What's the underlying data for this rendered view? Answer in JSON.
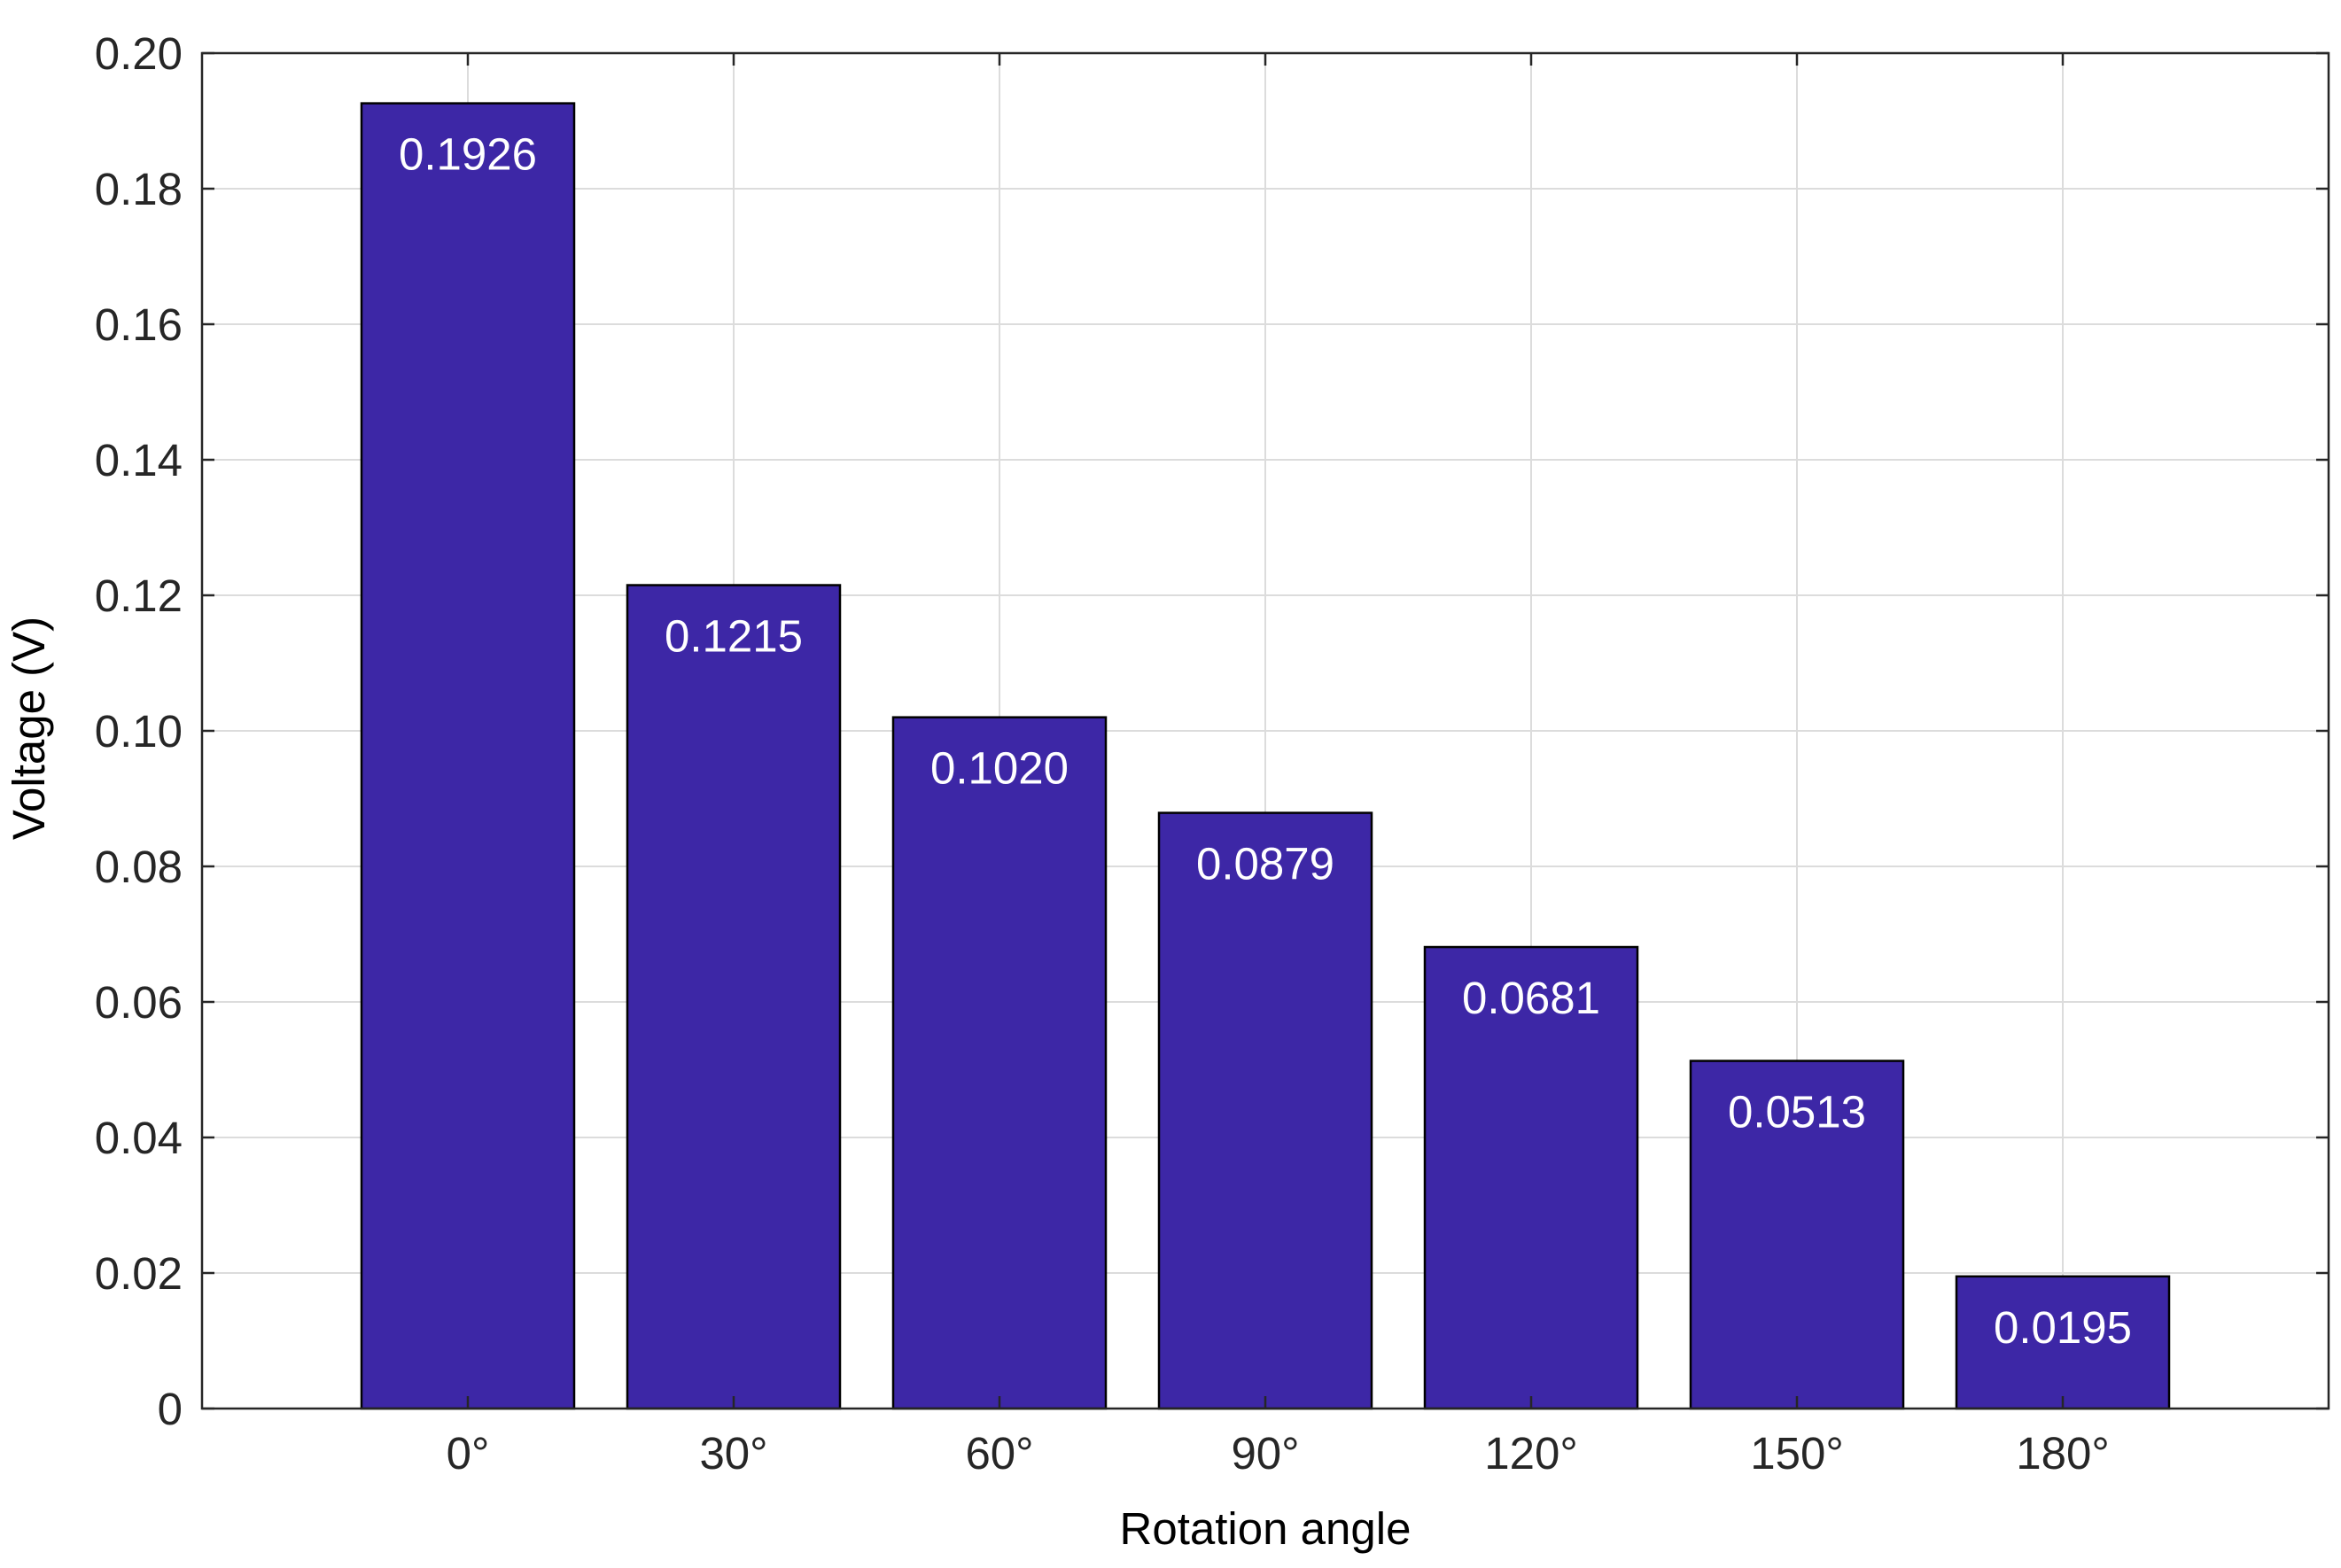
{
  "chart_data": {
    "type": "bar",
    "title": "",
    "xlabel": "Rotation angle",
    "ylabel": "Voltage (V)",
    "categories": [
      "0°",
      "30°",
      "60°",
      "90°",
      "120°",
      "150°",
      "180°"
    ],
    "values": [
      0.1926,
      0.1215,
      0.102,
      0.0879,
      0.0681,
      0.0513,
      0.0195
    ],
    "data_labels": [
      "0.1926",
      "0.1215",
      "0.1020",
      "0.0879",
      "0.0681",
      "0.0513",
      "0.0195"
    ],
    "ylim": [
      0,
      0.2
    ],
    "yticks": [
      0,
      0.02,
      0.04,
      0.06,
      0.08,
      0.1,
      0.12,
      0.14,
      0.16,
      0.18,
      0.2
    ],
    "ytick_labels": [
      "0",
      "0.02",
      "0.04",
      "0.06",
      "0.08",
      "0.10",
      "0.12",
      "0.14",
      "0.16",
      "0.18",
      "0.20"
    ],
    "grid": true,
    "legend": "none",
    "colors": {
      "bar": "#3d27a6",
      "bar_edge": "#000000",
      "grid": "#dcdcdc",
      "axes": "#262626",
      "data_label": "#ffffff"
    }
  }
}
